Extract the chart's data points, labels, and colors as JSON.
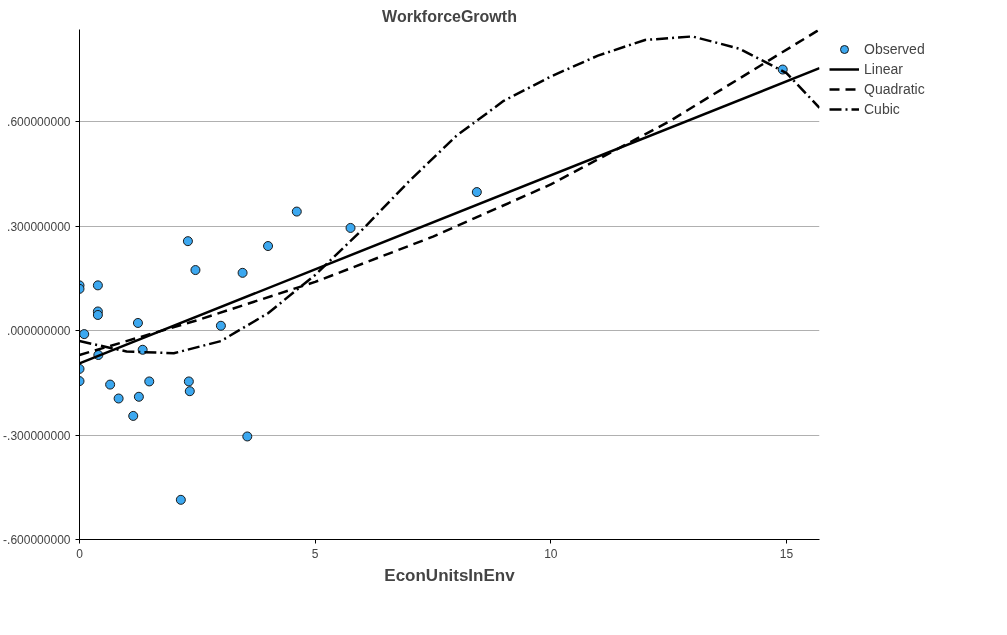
{
  "chart_data": {
    "type": "scatter",
    "title": "WorkforceGrowth",
    "xlabel": "EconUnitsInEnv",
    "xlim": [
      0,
      15.7
    ],
    "ylim": [
      -0.6,
      0.865
    ],
    "xticks": [
      0,
      5,
      10,
      15
    ],
    "yticks": [
      {
        "value": -0.6,
        "label": "-.600000000"
      },
      {
        "value": -0.3,
        "label": "-.300000000"
      },
      {
        "value": 0,
        "label": ".000000000"
      },
      {
        "value": 0.3,
        "label": ".300000000"
      },
      {
        "value": 0.6,
        "label": ".600000000"
      }
    ],
    "grid": "y",
    "legend": "top right",
    "series": [
      {
        "name": "Observed",
        "marker": "circle",
        "color": "#3ca8f0",
        "x": [
          0,
          0,
          0.1,
          0,
          0,
          0.39,
          0.39,
          0.39,
          0.4,
          0.65,
          0.83,
          1.14,
          1.24,
          1.26,
          1.34,
          1.48,
          2.15,
          2.3,
          2.32,
          2.34,
          2.46,
          3.0,
          3.46,
          3.56,
          4.0,
          4.61,
          5.75,
          8.43,
          14.92
        ],
        "values": [
          0.13,
          0.12,
          -0.01,
          -0.11,
          -0.145,
          0.13,
          0.055,
          0.045,
          -0.07,
          -0.155,
          -0.195,
          -0.245,
          0.022,
          -0.19,
          -0.055,
          -0.146,
          -0.486,
          0.257,
          -0.146,
          -0.174,
          0.174,
          0.014,
          0.166,
          -0.304,
          0.243,
          0.342,
          0.295,
          0.398,
          0.75
        ]
      },
      {
        "name": "Linear",
        "type": "line",
        "line_style": "solid",
        "color": "#000000",
        "x": [
          0,
          15.7
        ],
        "values": [
          -0.094,
          0.754
        ]
      },
      {
        "name": "Quadratic",
        "type": "line",
        "line_style": "dashed",
        "color": "#000000",
        "x": [
          0,
          2.5,
          5,
          7.5,
          10,
          12.5,
          15.7
        ],
        "values": [
          -0.07,
          0.03,
          0.14,
          0.27,
          0.42,
          0.6,
          0.865
        ]
      },
      {
        "name": "Cubic",
        "type": "line",
        "line_style": "dashdot",
        "color": "#000000",
        "x": [
          0,
          1,
          2,
          3,
          4,
          5,
          6,
          7,
          8,
          9,
          10,
          11,
          12,
          13,
          14,
          15,
          15.7
        ],
        "values": [
          -0.03,
          -0.06,
          -0.065,
          -0.03,
          0.05,
          0.16,
          0.29,
          0.43,
          0.56,
          0.66,
          0.73,
          0.79,
          0.835,
          0.845,
          0.81,
          0.74,
          0.64
        ]
      }
    ]
  }
}
